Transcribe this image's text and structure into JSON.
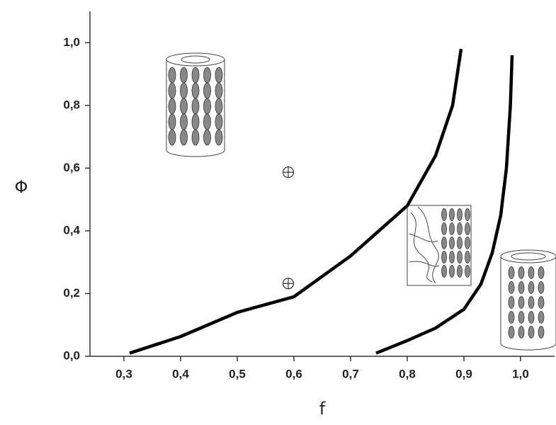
{
  "chart_data": {
    "type": "line",
    "x_label": "f",
    "y_label": "Φ",
    "xlim": [
      0.24,
      1.06
    ],
    "ylim": [
      0,
      1.1
    ],
    "xticks": [
      {
        "value": 0.3,
        "label": "0,3"
      },
      {
        "value": 0.4,
        "label": "0,4"
      },
      {
        "value": 0.5,
        "label": "0,5"
      },
      {
        "value": 0.6,
        "label": "0,6"
      },
      {
        "value": 0.7,
        "label": "0,7"
      },
      {
        "value": 0.8,
        "label": "0,8"
      },
      {
        "value": 0.9,
        "label": "0,9"
      },
      {
        "value": 1.0,
        "label": "1,0"
      }
    ],
    "yticks": [
      {
        "value": 0,
        "label": "0,0"
      },
      {
        "value": 0.2,
        "label": "0,2"
      },
      {
        "value": 0.4,
        "label": "0,4"
      },
      {
        "value": 0.6,
        "label": "0,6"
      },
      {
        "value": 0.8,
        "label": "0,8"
      },
      {
        "value": 1.0,
        "label": "1,0"
      }
    ],
    "series": [
      {
        "color": "#000000",
        "x": [
          0.31,
          0.4,
          0.5,
          0.55,
          0.6,
          0.7,
          0.8,
          0.85,
          0.88,
          0.895
        ],
        "values": [
          0.01,
          0.063,
          0.14,
          0.165,
          0.19,
          0.32,
          0.48,
          0.64,
          0.8,
          0.98
        ]
      },
      {
        "color": "#000000",
        "x": [
          0.745,
          0.8,
          0.85,
          0.9,
          0.93,
          0.95,
          0.965,
          0.975,
          0.982,
          0.985
        ],
        "values": [
          0.01,
          0.05,
          0.09,
          0.15,
          0.23,
          0.33,
          0.45,
          0.6,
          0.8,
          0.96
        ]
      }
    ],
    "points": {
      "x": [
        0.59,
        0.59
      ],
      "values": [
        0.587,
        0.232
      ]
    }
  }
}
